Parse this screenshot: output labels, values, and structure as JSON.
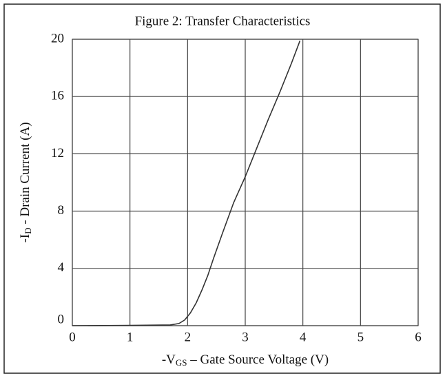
{
  "chart_data": {
    "type": "line",
    "title": "Figure 2: Transfer Characteristics",
    "x_label": {
      "main": "-V",
      "sub": "GS",
      "rest": " – Gate Source Voltage (V)"
    },
    "y_label": {
      "main": "-I",
      "sub": "D",
      "rest": " - Drain Current (A)"
    },
    "x": [
      0,
      1,
      1.7,
      1.85,
      1.95,
      2.05,
      2.15,
      2.25,
      2.35,
      2.45,
      2.6,
      2.8,
      3.0,
      3.2,
      3.4,
      3.6,
      3.8,
      3.95
    ],
    "values": [
      0,
      0.02,
      0.05,
      0.15,
      0.4,
      0.9,
      1.6,
      2.5,
      3.5,
      4.7,
      6.4,
      8.6,
      10.4,
      12.4,
      14.4,
      16.3,
      18.3,
      19.9
    ],
    "color": "#333333",
    "xlim": [
      0,
      6
    ],
    "xticks": [
      0,
      1,
      2,
      3,
      4,
      5,
      6
    ],
    "ylim": [
      0,
      20
    ],
    "yticks": [
      0,
      4,
      8,
      12,
      16,
      20
    ],
    "grid": true
  }
}
